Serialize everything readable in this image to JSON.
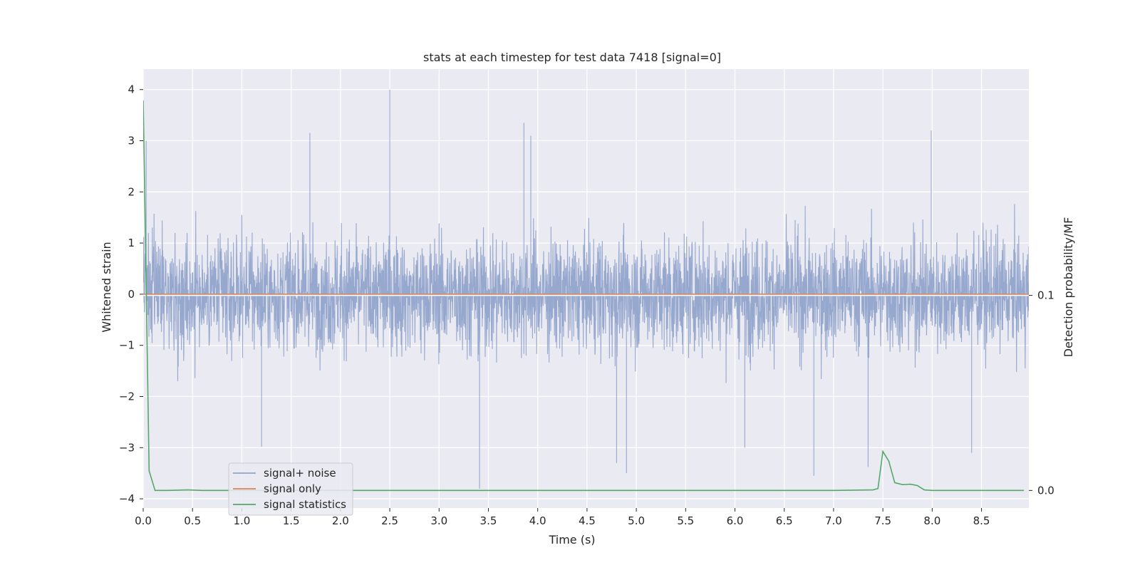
{
  "chart_data": {
    "type": "line",
    "title": "stats at each timestep for test data 7418 [signal=0]",
    "xlabel": "Time (s)",
    "ylabel": "Whitened strain",
    "y2label": "Detection probability/MF",
    "xlim": [
      0.0,
      8.98
    ],
    "ylim": [
      -4.18,
      4.4
    ],
    "y2lim": [
      -0.009,
      0.216
    ],
    "xticks": [
      "0.0",
      "0.5",
      "1.0",
      "1.5",
      "2.0",
      "2.5",
      "3.0",
      "3.5",
      "4.0",
      "4.5",
      "5.0",
      "5.5",
      "6.0",
      "6.5",
      "7.0",
      "7.5",
      "8.0",
      "8.5"
    ],
    "yticks": [
      "4",
      "3",
      "2",
      "1",
      "0",
      "−1",
      "−2",
      "−3",
      "−4"
    ],
    "y2ticks": [
      "0.1",
      "0.0"
    ],
    "grid": true,
    "legend_position": "lower-left",
    "series": [
      {
        "name": "signal+ noise",
        "color": "#92a4cc",
        "axis": "left",
        "description_peaks": "noise band mostly within -2.5..2.5, spikes",
        "sample_rate": 400,
        "spikes": [
          [
            0.03,
            3.0
          ],
          [
            2.5,
            4.0
          ],
          [
            1.69,
            3.15
          ],
          [
            3.86,
            3.35
          ],
          [
            3.93,
            3.1
          ],
          [
            7.99,
            3.2
          ],
          [
            3.41,
            -3.8
          ],
          [
            4.9,
            -3.5
          ],
          [
            6.8,
            -3.55
          ],
          [
            7.35,
            -3.38
          ],
          [
            8.4,
            -3.1
          ],
          [
            1.2,
            -2.98
          ],
          [
            4.8,
            -3.3
          ],
          [
            6.1,
            -3.0
          ]
        ]
      },
      {
        "name": "signal only",
        "color": "#dd8452",
        "axis": "left",
        "x": [
          0.0,
          8.98
        ],
        "y": [
          0.0,
          0.0
        ]
      },
      {
        "name": "signal statistics",
        "color": "#55a868",
        "axis": "right",
        "x": [
          0.0,
          0.06,
          0.12,
          0.25,
          0.45,
          0.6,
          1.0,
          2.0,
          3.0,
          4.0,
          5.0,
          6.0,
          7.0,
          7.4,
          7.45,
          7.5,
          7.56,
          7.62,
          7.7,
          7.78,
          7.85,
          7.92,
          8.0,
          8.5,
          8.93
        ],
        "y": [
          0.2,
          0.01,
          0.0,
          0.0,
          0.0003,
          0.0,
          0.0,
          0.0,
          0.0,
          0.0,
          0.0,
          0.0,
          0.0,
          0.0003,
          0.001,
          0.02,
          0.015,
          0.004,
          0.003,
          0.0032,
          0.0025,
          0.0003,
          0.0,
          0.0,
          0.0
        ]
      }
    ],
    "hline_right_axis": 0.1
  }
}
